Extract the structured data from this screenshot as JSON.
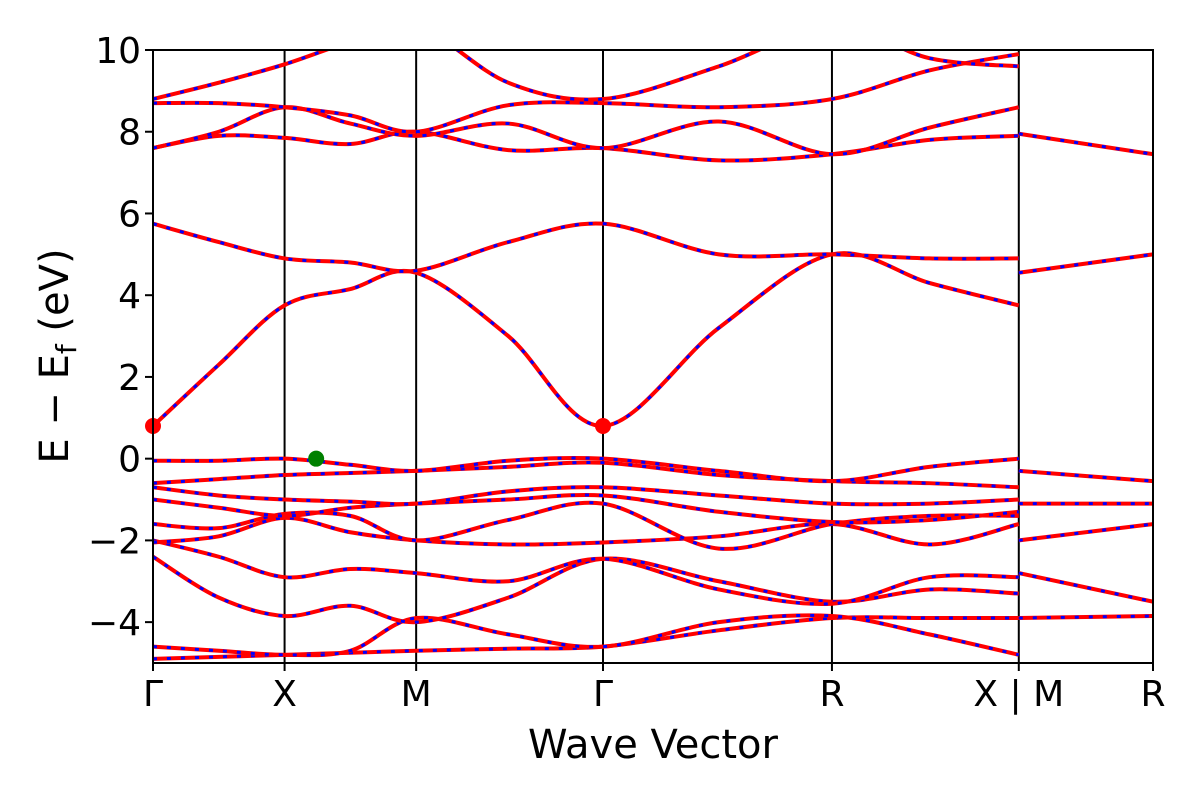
{
  "chart_data": {
    "type": "line",
    "xlabel": "Wave Vector",
    "ylabel_main": "E − E",
    "ylabel_sub": "f",
    "ylabel_unit": " (eV)",
    "ylim": [
      -5,
      10
    ],
    "yticks": [
      -4,
      -2,
      0,
      2,
      4,
      6,
      8,
      10
    ],
    "ytick_labels": [
      "−4",
      "−2",
      "0",
      "2",
      "4",
      "6",
      "8",
      "10"
    ],
    "xlim": [
      0,
      7.6
    ],
    "kpoints": [
      {
        "label": "Γ",
        "x": 0.0
      },
      {
        "label": "X",
        "x": 1.0
      },
      {
        "label": "M",
        "x": 2.0
      },
      {
        "label": "Γ",
        "x": 3.42
      },
      {
        "label": "R",
        "x": 5.16
      },
      {
        "label": "X | M",
        "x": 6.58
      },
      {
        "label": "R",
        "x": 7.6
      }
    ],
    "segment_breaks": [
      6.58
    ],
    "grid": false,
    "band_colors": {
      "spin_up": "#ff0000",
      "spin_down": "#0000ff"
    },
    "bands": [
      {
        "x": [
          0,
          0.5,
          1.0,
          1.5,
          2.0,
          2.7,
          3.42,
          4.3,
          5.16,
          5.9,
          6.58
        ],
        "y": [
          -4.9,
          -4.85,
          -4.8,
          -4.75,
          -4.7,
          -4.65,
          -4.6,
          -4.2,
          -3.9,
          -3.9,
          -3.9
        ]
      },
      {
        "x": [
          0,
          0.5,
          1.0,
          1.5,
          2.0,
          2.7,
          3.42,
          4.3,
          5.16,
          5.9,
          6.58
        ],
        "y": [
          -4.6,
          -4.7,
          -4.8,
          -4.7,
          -3.9,
          -4.3,
          -4.6,
          -4.0,
          -3.85,
          -4.3,
          -4.8
        ]
      },
      {
        "x": [
          0,
          0.5,
          1.0,
          1.5,
          2.0,
          2.7,
          3.42,
          4.3,
          5.16,
          5.9,
          6.58
        ],
        "y": [
          -2.4,
          -3.4,
          -3.85,
          -3.6,
          -4.0,
          -3.4,
          -2.45,
          -3.0,
          -3.5,
          -3.2,
          -3.3
        ]
      },
      {
        "x": [
          0,
          0.5,
          1.0,
          1.5,
          2.0,
          2.7,
          3.42,
          4.3,
          5.16,
          5.9,
          6.58
        ],
        "y": [
          -2.0,
          -2.4,
          -2.9,
          -2.7,
          -2.8,
          -3.0,
          -2.45,
          -3.2,
          -3.55,
          -2.9,
          -2.9
        ]
      },
      {
        "x": [
          0,
          0.5,
          1.0,
          1.5,
          2.0,
          2.7,
          3.42,
          4.3,
          5.16,
          5.9,
          6.58
        ],
        "y": [
          -2.05,
          -1.9,
          -1.45,
          -1.8,
          -2.0,
          -2.1,
          -2.05,
          -1.9,
          -1.6,
          -2.1,
          -1.6
        ]
      },
      {
        "x": [
          0,
          0.5,
          1.0,
          1.5,
          2.0,
          2.7,
          3.42,
          4.3,
          5.16,
          5.9,
          6.58
        ],
        "y": [
          -1.6,
          -1.7,
          -1.35,
          -1.4,
          -2.0,
          -1.5,
          -1.1,
          -2.2,
          -1.6,
          -1.4,
          -1.4
        ]
      },
      {
        "x": [
          0,
          0.5,
          1.0,
          1.5,
          2.0,
          2.7,
          3.42,
          4.3,
          5.16,
          5.9,
          6.58
        ],
        "y": [
          -1.0,
          -1.2,
          -1.4,
          -1.2,
          -1.1,
          -1.0,
          -0.9,
          -1.3,
          -1.55,
          -1.5,
          -1.3
        ]
      },
      {
        "x": [
          0,
          0.5,
          1.0,
          1.5,
          2.0,
          2.7,
          3.42,
          4.3,
          5.16,
          5.9,
          6.58
        ],
        "y": [
          -0.7,
          -0.9,
          -1.0,
          -1.05,
          -1.1,
          -0.8,
          -0.7,
          -0.9,
          -1.1,
          -1.1,
          -1.0
        ]
      },
      {
        "x": [
          0,
          0.5,
          1.0,
          1.5,
          2.0,
          2.7,
          3.42,
          4.3,
          5.16,
          5.9,
          6.58
        ],
        "y": [
          -0.6,
          -0.5,
          -0.4,
          -0.35,
          -0.3,
          -0.2,
          -0.1,
          -0.4,
          -0.55,
          -0.6,
          -0.7
        ]
      },
      {
        "x": [
          0,
          0.5,
          1.0,
          1.5,
          2.0,
          2.7,
          3.42,
          4.3,
          5.16,
          5.9,
          6.58
        ],
        "y": [
          -0.05,
          -0.05,
          0.0,
          -0.15,
          -0.3,
          -0.05,
          0.0,
          -0.3,
          -0.55,
          -0.2,
          0.0
        ]
      },
      {
        "x": [
          0,
          0.5,
          1.0,
          1.5,
          2.0,
          2.7,
          3.42,
          4.3,
          5.16,
          5.9,
          6.58
        ],
        "y": [
          0.8,
          2.3,
          3.75,
          4.15,
          4.55,
          3.0,
          0.8,
          3.2,
          5.0,
          4.3,
          3.75
        ]
      },
      {
        "x": [
          0,
          0.5,
          1.0,
          1.5,
          2.0,
          2.7,
          3.42,
          4.3,
          5.16,
          5.9,
          6.58
        ],
        "y": [
          5.75,
          5.3,
          4.9,
          4.8,
          4.6,
          5.3,
          5.75,
          5.0,
          5.0,
          4.9,
          4.9
        ]
      },
      {
        "x": [
          0,
          0.5,
          1.0,
          1.5,
          2.0,
          2.7,
          3.42,
          4.3,
          5.16,
          5.9,
          6.58
        ],
        "y": [
          7.6,
          7.9,
          7.85,
          7.7,
          8.0,
          7.55,
          7.6,
          7.3,
          7.45,
          7.8,
          7.9
        ]
      },
      {
        "x": [
          0,
          0.5,
          1.0,
          1.5,
          2.0,
          2.7,
          3.42,
          4.3,
          5.16,
          5.9,
          6.58
        ],
        "y": [
          7.6,
          8.0,
          8.6,
          8.2,
          7.9,
          8.2,
          7.6,
          8.25,
          7.45,
          8.1,
          8.6
        ]
      },
      {
        "x": [
          0,
          0.5,
          1.0,
          1.5,
          2.0,
          2.7,
          3.42,
          4.3,
          5.16,
          5.9,
          6.58
        ],
        "y": [
          8.7,
          8.7,
          8.6,
          8.4,
          8.0,
          8.65,
          8.7,
          8.6,
          8.8,
          9.5,
          9.9
        ]
      },
      {
        "x": [
          0,
          0.5,
          1.0,
          1.5,
          2.0,
          2.7,
          3.42,
          4.3,
          5.16,
          5.9,
          6.58
        ],
        "y": [
          8.8,
          9.2,
          9.65,
          10.2,
          10.6,
          9.2,
          8.8,
          9.6,
          10.6,
          9.8,
          9.6
        ]
      },
      {
        "x": [
          6.58,
          7.6
        ],
        "y": [
          4.55,
          5.0
        ]
      },
      {
        "x": [
          6.58,
          7.6
        ],
        "y": [
          7.95,
          7.45
        ]
      },
      {
        "x": [
          6.58,
          7.6
        ],
        "y": [
          -0.3,
          -0.55
        ]
      },
      {
        "x": [
          6.58,
          7.6
        ],
        "y": [
          -1.1,
          -1.1
        ]
      },
      {
        "x": [
          6.58,
          7.6
        ],
        "y": [
          -2.0,
          -1.6
        ]
      },
      {
        "x": [
          6.58,
          7.6
        ],
        "y": [
          -2.8,
          -3.5
        ]
      },
      {
        "x": [
          6.58,
          7.6
        ],
        "y": [
          -3.9,
          -3.85
        ]
      }
    ],
    "markers": [
      {
        "name": "vbm",
        "x": 1.24,
        "y": 0.0,
        "color": "#008000"
      },
      {
        "name": "cbm-gamma-start",
        "x": 0.0,
        "y": 0.8,
        "color": "#ff0000"
      },
      {
        "name": "cbm-gamma-mid",
        "x": 3.42,
        "y": 0.8,
        "color": "#ff0000"
      }
    ]
  }
}
